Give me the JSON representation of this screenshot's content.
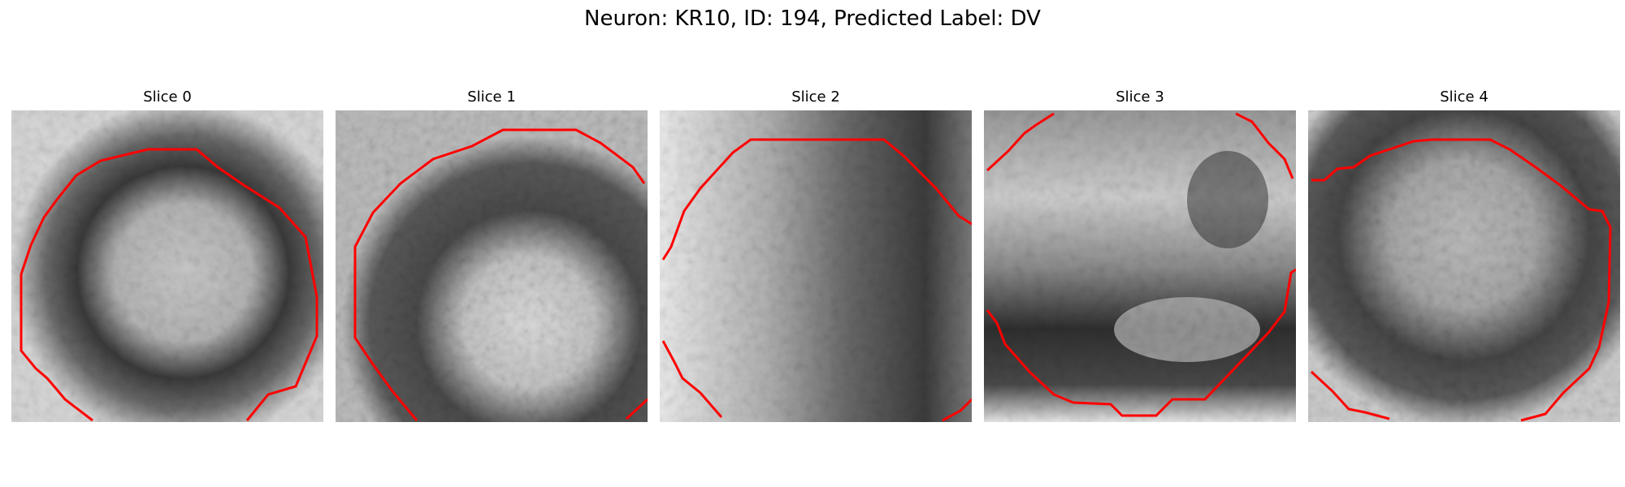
{
  "figure": {
    "title": "Neuron: KR10, ID: 194, Predicted Label: DV"
  },
  "panels": [
    {
      "title": "Slice 0"
    },
    {
      "title": "Slice 1"
    },
    {
      "title": "Slice 2"
    },
    {
      "title": "Slice 3"
    },
    {
      "title": "Slice 4"
    }
  ],
  "colors": {
    "contour": "#ff0000",
    "background": "#ffffff"
  }
}
